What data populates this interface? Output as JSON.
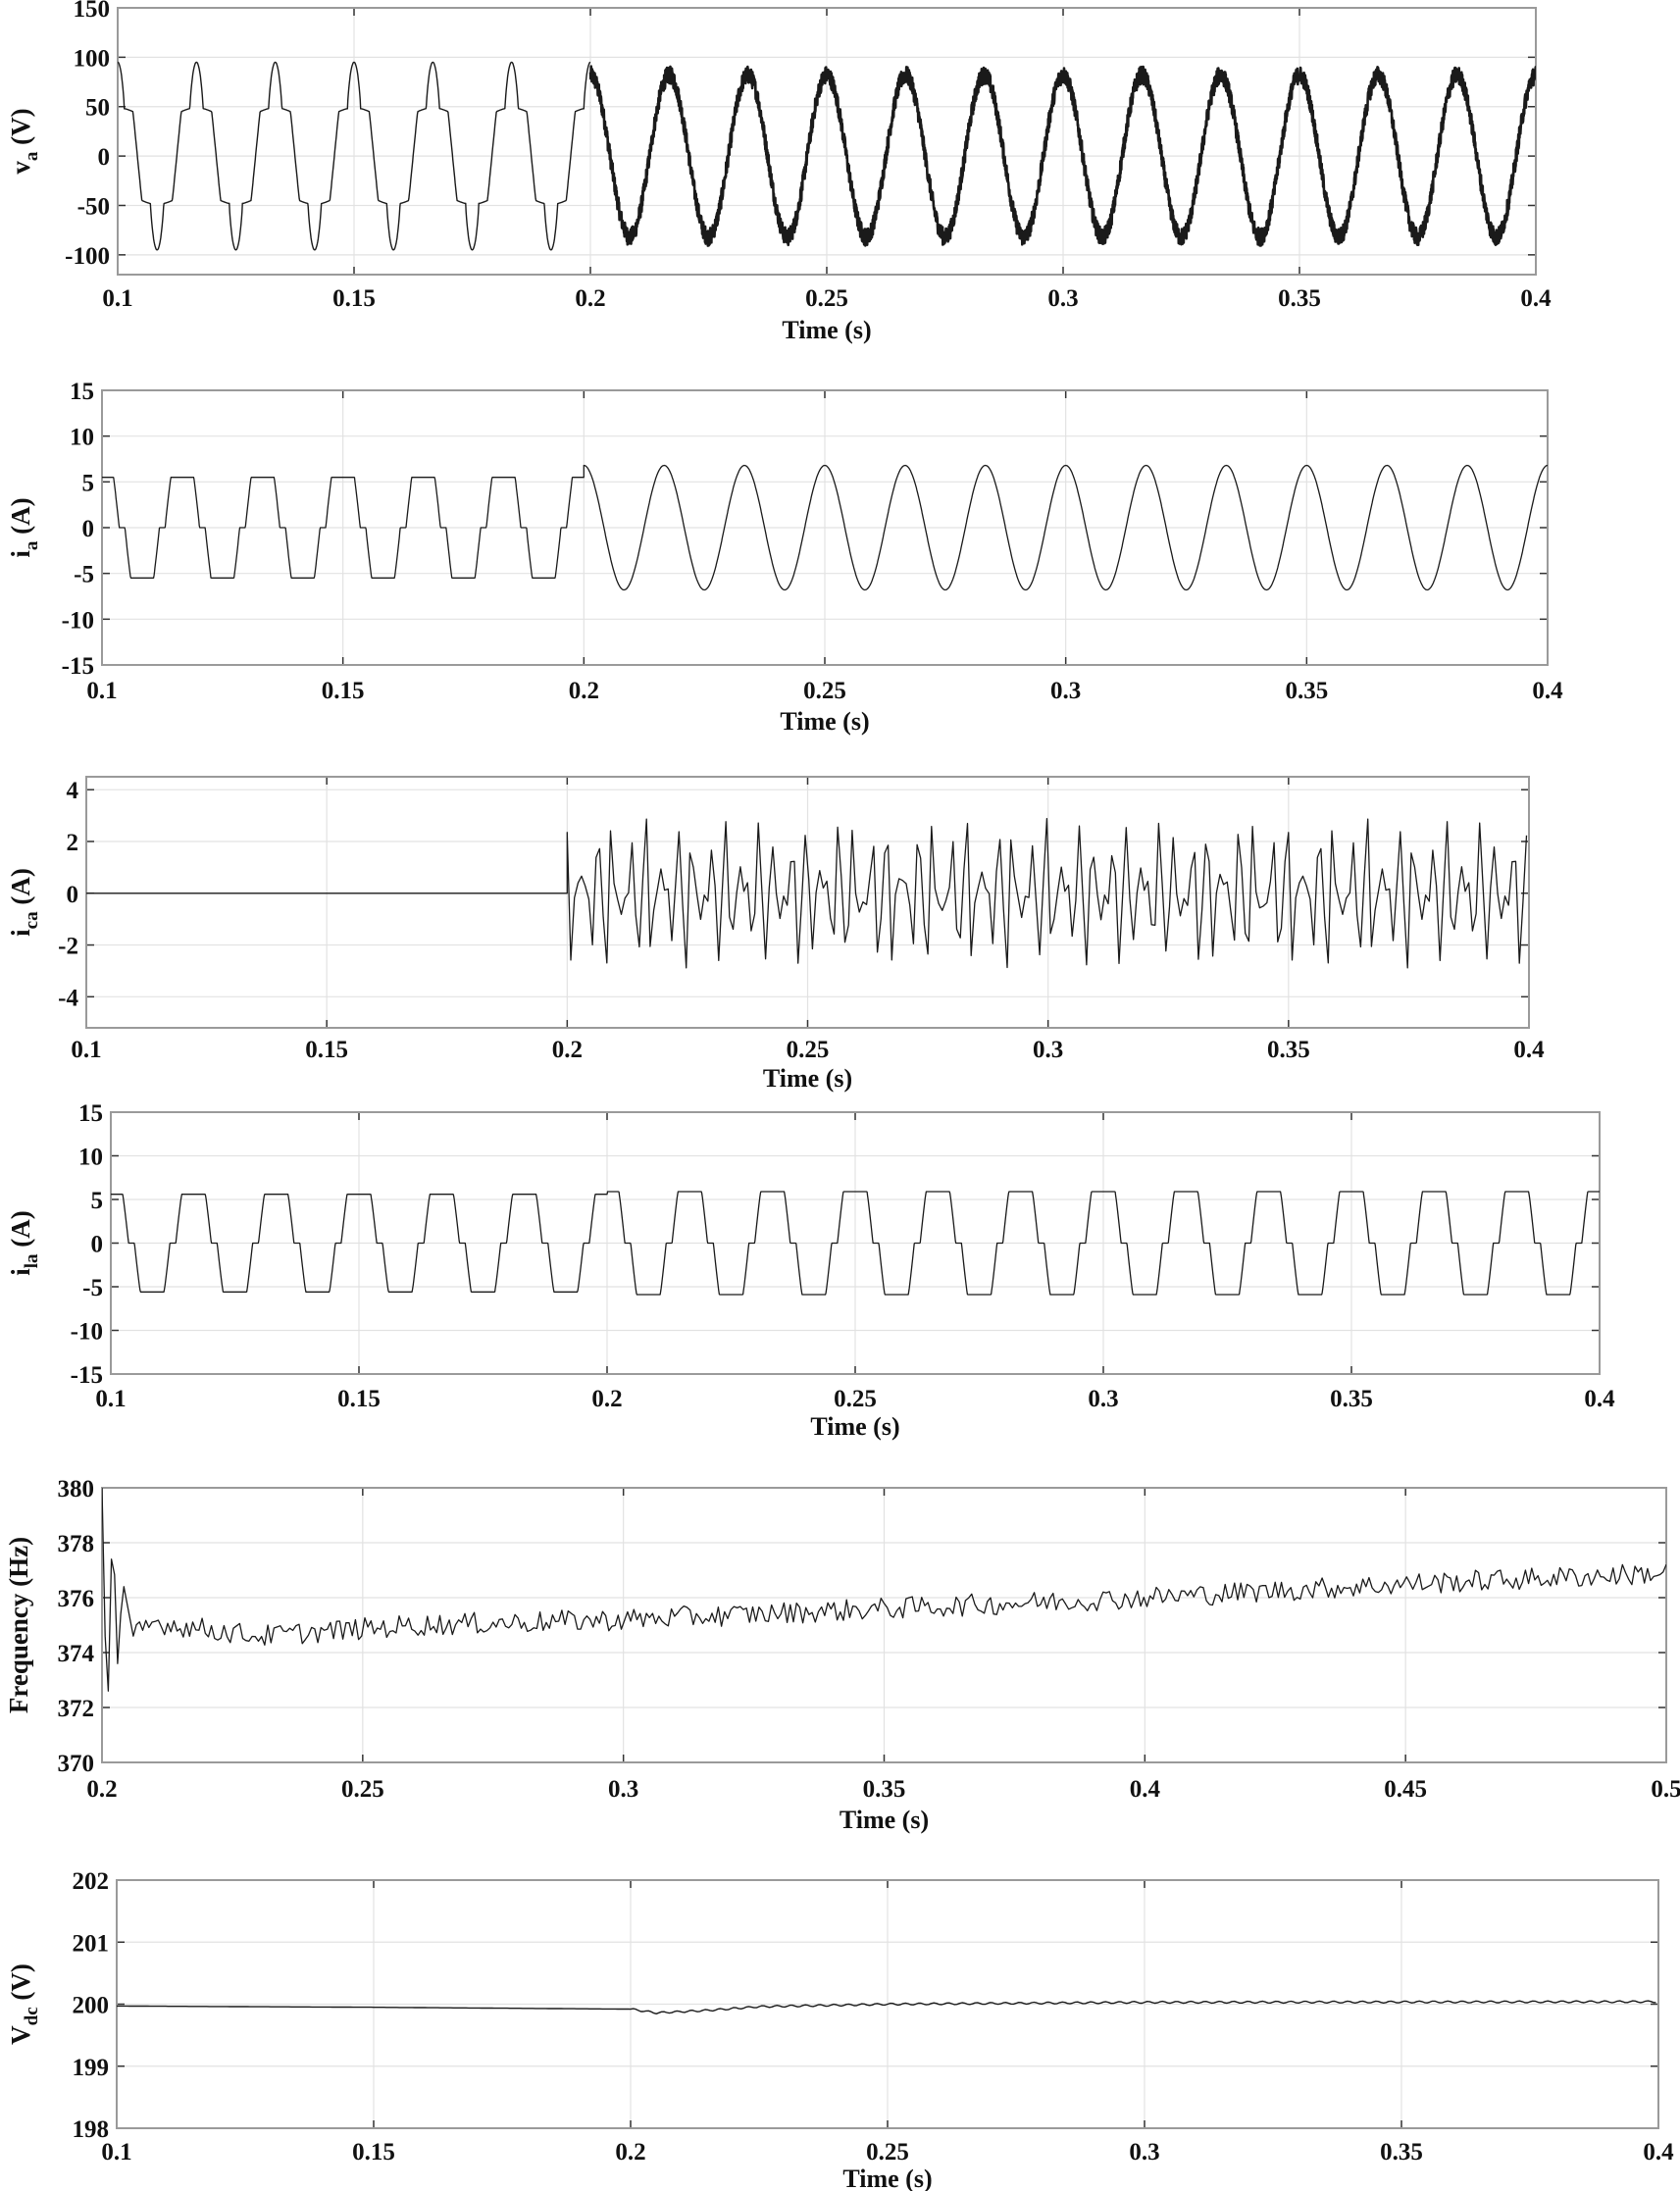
{
  "chart_data": [
    {
      "type": "line",
      "xlabel": "Time (s)",
      "ylabel": {
        "main": "v",
        "sub": "a",
        "unit": "(V)"
      },
      "xlim": [
        0.1,
        0.4
      ],
      "ylim": [
        -120,
        150
      ],
      "xticks": [
        "0.1",
        "0.15",
        "0.2",
        "0.25",
        "0.3",
        "0.35",
        "0.4"
      ],
      "yticks": [
        "-100",
        "-50",
        "0",
        "50",
        "100",
        "150"
      ],
      "grid": true,
      "series": [
        {
          "segment": [
            0.1,
            0.2
          ],
          "waveform": "distorted stepped",
          "fundamental_hz": 60,
          "peak": 95,
          "step_level": 45
        },
        {
          "segment": [
            0.2,
            0.4
          ],
          "waveform": "sinusoidal with switching ripple",
          "fundamental_hz": 60,
          "peak": 90
        }
      ]
    },
    {
      "type": "line",
      "xlabel": "Time (s)",
      "ylabel": {
        "main": "i",
        "sub": "a",
        "unit": "(A)"
      },
      "xlim": [
        0.1,
        0.4
      ],
      "ylim": [
        -15,
        15
      ],
      "xticks": [
        "0.1",
        "0.15",
        "0.2",
        "0.25",
        "0.3",
        "0.35",
        "0.4"
      ],
      "yticks": [
        "-15",
        "-10",
        "-5",
        "0",
        "5",
        "10",
        "15"
      ],
      "grid": true,
      "series": [
        {
          "segment": [
            0.1,
            0.2
          ],
          "waveform": "quasi-square",
          "fundamental_hz": 60,
          "peak": 5.5
        },
        {
          "segment": [
            0.2,
            0.4
          ],
          "waveform": "sinusoidal",
          "fundamental_hz": 60,
          "peak": 6.8
        }
      ]
    },
    {
      "type": "line",
      "xlabel": "Time (s)",
      "ylabel": {
        "main": "i",
        "sub": "ca",
        "unit": "(A)"
      },
      "xlim": [
        0.1,
        0.4
      ],
      "ylim": [
        -5.2,
        4.5
      ],
      "xticks": [
        "0.1",
        "0.15",
        "0.2",
        "0.25",
        "0.3",
        "0.35",
        "0.4"
      ],
      "yticks": [
        "-4",
        "-2",
        "0",
        "2",
        "4"
      ],
      "grid": true,
      "series": [
        {
          "segment": [
            0.1,
            0.2
          ],
          "waveform": "zero",
          "value": 0
        },
        {
          "segment": [
            0.2,
            0.4
          ],
          "waveform": "harmonic compensating current",
          "peak": 3.5,
          "trough": -3.3
        }
      ]
    },
    {
      "type": "line",
      "xlabel": "Time (s)",
      "ylabel": {
        "main": "i",
        "sub": "la",
        "unit": "(A)"
      },
      "xlim": [
        0.1,
        0.4
      ],
      "ylim": [
        -15,
        15
      ],
      "xticks": [
        "0.1",
        "0.15",
        "0.2",
        "0.25",
        "0.3",
        "0.35",
        "0.4"
      ],
      "yticks": [
        "-15",
        "-10",
        "-5",
        "0",
        "5",
        "10",
        "15"
      ],
      "grid": true,
      "series": [
        {
          "segment": [
            0.1,
            0.2
          ],
          "waveform": "quasi-square",
          "fundamental_hz": 60,
          "peak": 5.6
        },
        {
          "segment": [
            0.2,
            0.4
          ],
          "waveform": "quasi-square",
          "fundamental_hz": 60,
          "peak": 5.9
        }
      ]
    },
    {
      "type": "line",
      "xlabel": "Time (s)",
      "ylabel": {
        "main": "Frequency (Hz)",
        "sub": "",
        "unit": ""
      },
      "xlim": [
        0.2,
        0.5
      ],
      "ylim": [
        370,
        380
      ],
      "xticks": [
        "0.2",
        "0.25",
        "0.3",
        "0.35",
        "0.4",
        "0.45",
        "0.5"
      ],
      "yticks": [
        "370",
        "372",
        "374",
        "376",
        "378",
        "380"
      ],
      "grid": true,
      "series": [
        {
          "x": [
            0.2,
            0.201,
            0.202,
            0.203,
            0.204,
            0.206,
            0.21,
            0.23,
            0.26,
            0.3,
            0.35,
            0.4,
            0.45,
            0.5
          ],
          "y": [
            380,
            371,
            379,
            373.6,
            376.6,
            374.6,
            375.1,
            374.6,
            375.0,
            375.2,
            375.6,
            376.0,
            376.5,
            376.9
          ]
        }
      ]
    },
    {
      "type": "line",
      "xlabel": "Time (s)",
      "ylabel": {
        "main": "V",
        "sub": "dc",
        "unit": "(V)"
      },
      "xlim": [
        0.1,
        0.4
      ],
      "ylim": [
        198,
        202
      ],
      "xticks": [
        "0.1",
        "0.15",
        "0.2",
        "0.25",
        "0.3",
        "0.35",
        "0.4"
      ],
      "yticks": [
        "198",
        "199",
        "200",
        "201",
        "202"
      ],
      "grid": true,
      "series": [
        {
          "x": [
            0.1,
            0.15,
            0.2,
            0.205,
            0.215,
            0.225,
            0.25,
            0.3,
            0.4
          ],
          "y": [
            199.97,
            199.95,
            199.92,
            199.86,
            199.9,
            199.96,
            200.0,
            200.03,
            200.04
          ]
        }
      ]
    }
  ],
  "colors": {
    "trace": "#1a1a1a",
    "grid": "#e2e2e2",
    "frame": "#9a9a9a"
  }
}
